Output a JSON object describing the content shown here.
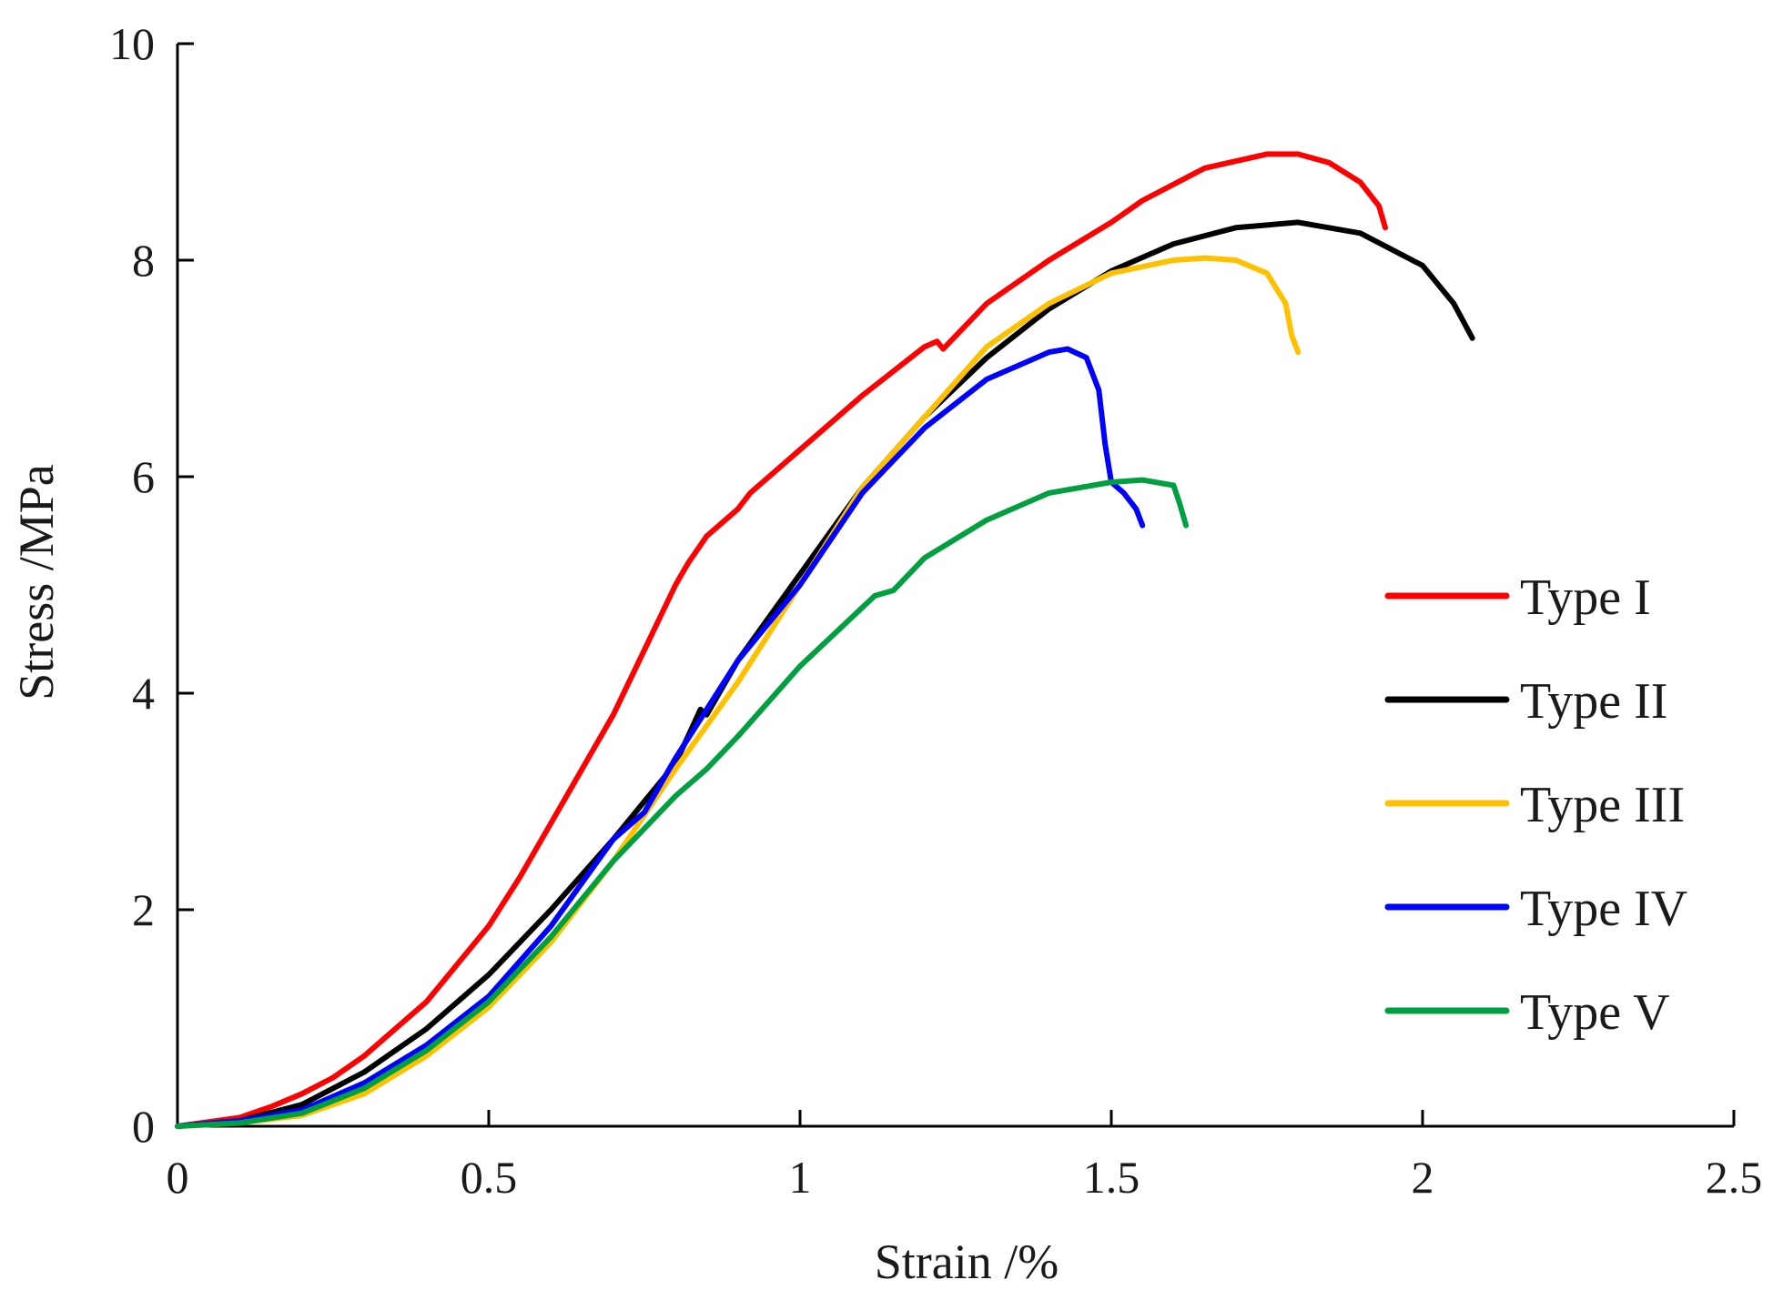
{
  "chart_data": {
    "type": "line",
    "title": "",
    "xlabel": "Strain /%",
    "ylabel": "Stress /MPa",
    "xlim": [
      0,
      2.5
    ],
    "ylim": [
      0,
      10
    ],
    "xticks": [
      0,
      0.5,
      1,
      1.5,
      2,
      2.5
    ],
    "xtick_labels": [
      "0",
      "0.5",
      "1",
      "1.5",
      "2",
      "2.5"
    ],
    "yticks": [
      0,
      2,
      4,
      6,
      8,
      10
    ],
    "ytick_labels": [
      "0",
      "2",
      "4",
      "6",
      "8",
      "10"
    ],
    "grid": false,
    "legend_position": "right",
    "series": [
      {
        "name": "Type I",
        "color": "#ff0000",
        "x": [
          0,
          0.1,
          0.15,
          0.2,
          0.25,
          0.3,
          0.35,
          0.4,
          0.45,
          0.5,
          0.55,
          0.6,
          0.65,
          0.7,
          0.75,
          0.8,
          0.82,
          0.85,
          0.9,
          0.92,
          1.0,
          1.1,
          1.2,
          1.22,
          1.23,
          1.3,
          1.4,
          1.5,
          1.55,
          1.65,
          1.75,
          1.8,
          1.85,
          1.9,
          1.93,
          1.94
        ],
        "y": [
          0,
          0.08,
          0.18,
          0.3,
          0.45,
          0.65,
          0.9,
          1.15,
          1.5,
          1.85,
          2.3,
          2.8,
          3.3,
          3.8,
          4.4,
          5.0,
          5.2,
          5.45,
          5.7,
          5.85,
          6.25,
          6.75,
          7.2,
          7.25,
          7.18,
          7.6,
          8.0,
          8.35,
          8.55,
          8.85,
          8.98,
          8.98,
          8.9,
          8.72,
          8.5,
          8.3
        ]
      },
      {
        "name": "Type II",
        "color": "#000000",
        "x": [
          0,
          0.1,
          0.2,
          0.3,
          0.4,
          0.5,
          0.6,
          0.7,
          0.8,
          0.84,
          0.85,
          0.9,
          1.0,
          1.1,
          1.2,
          1.3,
          1.4,
          1.5,
          1.6,
          1.7,
          1.8,
          1.9,
          2.0,
          2.05,
          2.08
        ],
        "y": [
          0,
          0.05,
          0.2,
          0.5,
          0.9,
          1.4,
          2.0,
          2.65,
          3.35,
          3.85,
          3.8,
          4.3,
          5.1,
          5.9,
          6.55,
          7.1,
          7.55,
          7.9,
          8.15,
          8.3,
          8.35,
          8.25,
          7.95,
          7.6,
          7.28
        ]
      },
      {
        "name": "Type III",
        "color": "#ffc000",
        "x": [
          0,
          0.1,
          0.2,
          0.3,
          0.4,
          0.5,
          0.6,
          0.7,
          0.8,
          0.9,
          1.0,
          1.1,
          1.2,
          1.3,
          1.4,
          1.5,
          1.6,
          1.65,
          1.7,
          1.75,
          1.78,
          1.79,
          1.8
        ],
        "y": [
          0,
          0.03,
          0.1,
          0.3,
          0.65,
          1.1,
          1.7,
          2.45,
          3.3,
          4.1,
          5.0,
          5.9,
          6.55,
          7.2,
          7.6,
          7.88,
          8.0,
          8.02,
          8.0,
          7.88,
          7.6,
          7.3,
          7.15
        ]
      },
      {
        "name": "Type IV",
        "color": "#0000ff",
        "x": [
          0,
          0.1,
          0.2,
          0.3,
          0.4,
          0.5,
          0.6,
          0.7,
          0.75,
          0.8,
          0.9,
          1.0,
          1.1,
          1.2,
          1.3,
          1.4,
          1.43,
          1.46,
          1.48,
          1.49,
          1.5,
          1.52,
          1.54,
          1.55
        ],
        "y": [
          0,
          0.05,
          0.15,
          0.4,
          0.75,
          1.2,
          1.85,
          2.65,
          2.9,
          3.4,
          4.3,
          5.0,
          5.85,
          6.45,
          6.9,
          7.15,
          7.18,
          7.1,
          6.8,
          6.3,
          5.95,
          5.85,
          5.7,
          5.55
        ]
      },
      {
        "name": "Type V",
        "color": "#00a040",
        "x": [
          0,
          0.1,
          0.2,
          0.3,
          0.4,
          0.5,
          0.6,
          0.7,
          0.8,
          0.85,
          0.9,
          1.0,
          1.12,
          1.15,
          1.2,
          1.3,
          1.4,
          1.5,
          1.55,
          1.6,
          1.61,
          1.62
        ],
        "y": [
          0,
          0.03,
          0.12,
          0.35,
          0.7,
          1.15,
          1.75,
          2.45,
          3.05,
          3.3,
          3.6,
          4.25,
          4.9,
          4.95,
          5.25,
          5.6,
          5.85,
          5.95,
          5.97,
          5.92,
          5.75,
          5.55
        ]
      }
    ]
  }
}
